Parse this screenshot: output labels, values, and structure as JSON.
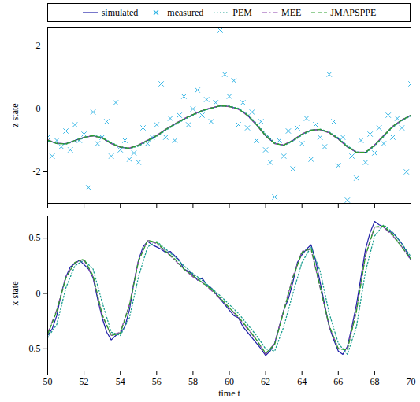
{
  "chart_data": [
    {
      "type": "line",
      "ylabel": "z state",
      "legend": "top",
      "tick_labels": "y",
      "xlim": [
        50,
        70
      ],
      "xticks": [
        50,
        52,
        54,
        56,
        58,
        60,
        62,
        64,
        66,
        68,
        70
      ],
      "ylim": [
        -3,
        2.6
      ],
      "yticks": [
        -2,
        0,
        2
      ],
      "x": [
        50,
        50.5,
        51,
        51.5,
        52,
        52.5,
        53,
        53.5,
        54,
        54.5,
        55,
        55.5,
        56,
        56.5,
        57,
        57.5,
        58,
        58.5,
        59,
        59.5,
        60,
        60.5,
        61,
        61.5,
        62,
        62.5,
        63,
        63.5,
        64,
        64.5,
        65,
        65.5,
        66,
        66.5,
        67,
        67.5,
        68,
        68.5,
        69,
        69.5,
        70
      ],
      "series": [
        {
          "name": "simulated",
          "color": "#1f1fa8",
          "line_style": "solid",
          "values": [
            -1.0,
            -1.1,
            -1.1,
            -1.0,
            -0.9,
            -0.85,
            -0.92,
            -1.1,
            -1.22,
            -1.25,
            -1.15,
            -1.0,
            -0.85,
            -0.65,
            -0.48,
            -0.32,
            -0.18,
            -0.05,
            0.03,
            0.1,
            0.08,
            0.0,
            -0.2,
            -0.5,
            -0.85,
            -1.1,
            -1.15,
            -1.0,
            -0.8,
            -0.67,
            -0.65,
            -0.75,
            -0.95,
            -1.2,
            -1.38,
            -1.38,
            -1.15,
            -0.85,
            -0.55,
            -0.35,
            -0.2
          ]
        },
        {
          "name": "measured",
          "color": "#33b5e5",
          "type": "scatter",
          "marker": "x",
          "x": [
            50,
            50.25,
            50.5,
            50.75,
            51,
            51.25,
            51.5,
            51.75,
            52,
            52.25,
            52.5,
            52.75,
            53,
            53.25,
            53.5,
            53.75,
            54,
            54.25,
            54.5,
            54.75,
            55,
            55.25,
            55.5,
            55.75,
            56,
            56.25,
            56.5,
            56.75,
            57,
            57.25,
            57.5,
            57.75,
            58,
            58.25,
            58.5,
            58.75,
            59,
            59.25,
            59.5,
            59.75,
            60,
            60.25,
            60.5,
            60.75,
            61,
            61.25,
            61.5,
            61.75,
            62,
            62.25,
            62.5,
            62.75,
            63,
            63.25,
            63.5,
            63.75,
            64,
            64.25,
            64.5,
            64.75,
            65,
            65.25,
            65.5,
            65.75,
            66,
            66.25,
            66.5,
            66.75,
            67,
            67.25,
            67.5,
            67.75,
            68,
            68.25,
            68.5,
            68.75,
            69,
            69.25,
            69.5,
            69.75,
            70
          ],
          "values": [
            -0.9,
            -1.5,
            -1.0,
            -1.2,
            -0.7,
            -1.3,
            -0.5,
            -1.0,
            -0.8,
            -2.5,
            -0.1,
            -1.1,
            -0.9,
            -0.4,
            -1.5,
            0.2,
            -1.3,
            -1.0,
            -1.6,
            -1.4,
            -1.7,
            -0.6,
            -1.1,
            -0.9,
            -0.5,
            0.8,
            -0.9,
            -0.3,
            -1.0,
            -0.2,
            0.4,
            -0.5,
            0.0,
            0.6,
            -0.2,
            0.3,
            -0.4,
            0.2,
            2.5,
            1.1,
            0.4,
            0.9,
            -0.5,
            0.2,
            -0.6,
            -0.1,
            -1.0,
            -0.4,
            -1.3,
            -1.7,
            -2.8,
            -1.0,
            -1.5,
            -0.7,
            -1.9,
            -0.6,
            -1.1,
            -0.3,
            -1.6,
            -0.5,
            -0.9,
            -1.2,
            1.1,
            -0.4,
            -1.8,
            -0.9,
            -2.9,
            -1.5,
            -2.2,
            -1.0,
            -1.7,
            -0.8,
            -1.4,
            -0.6,
            -1.1,
            -0.2,
            -0.9,
            -0.3,
            -0.6,
            -2.0,
            0.8
          ]
        },
        {
          "name": "PEM",
          "color": "#1a9e8f",
          "line_style": "dotted",
          "values": [
            -1.02,
            -1.08,
            -1.12,
            -1.03,
            -0.92,
            -0.84,
            -0.9,
            -1.07,
            -1.2,
            -1.26,
            -1.18,
            -1.03,
            -0.87,
            -0.68,
            -0.5,
            -0.34,
            -0.2,
            -0.07,
            0.02,
            0.09,
            0.09,
            0.02,
            -0.17,
            -0.46,
            -0.8,
            -1.07,
            -1.16,
            -1.03,
            -0.83,
            -0.69,
            -0.64,
            -0.73,
            -0.92,
            -1.17,
            -1.36,
            -1.4,
            -1.18,
            -0.88,
            -0.58,
            -0.37,
            -0.22
          ]
        },
        {
          "name": "MEE",
          "color": "#8e44ad",
          "line_style": "dashdot",
          "values": [
            -0.98,
            -1.09,
            -1.1,
            -1.01,
            -0.9,
            -0.86,
            -0.93,
            -1.1,
            -1.21,
            -1.24,
            -1.14,
            -0.99,
            -0.84,
            -0.64,
            -0.47,
            -0.31,
            -0.17,
            -0.05,
            0.04,
            0.1,
            0.07,
            -0.01,
            -0.21,
            -0.51,
            -0.86,
            -1.1,
            -1.14,
            -0.99,
            -0.79,
            -0.67,
            -0.66,
            -0.76,
            -0.96,
            -1.21,
            -1.37,
            -1.37,
            -1.14,
            -0.84,
            -0.55,
            -0.35,
            -0.2
          ]
        },
        {
          "name": "JMAPSPPE",
          "color": "#2ca02c",
          "line_style": "dashed",
          "values": [
            -0.99,
            -1.1,
            -1.11,
            -1.0,
            -0.9,
            -0.85,
            -0.92,
            -1.09,
            -1.21,
            -1.25,
            -1.15,
            -1.0,
            -0.85,
            -0.65,
            -0.48,
            -0.32,
            -0.18,
            -0.05,
            0.03,
            0.1,
            0.08,
            0.0,
            -0.2,
            -0.5,
            -0.85,
            -1.1,
            -1.15,
            -1.0,
            -0.8,
            -0.67,
            -0.65,
            -0.75,
            -0.95,
            -1.2,
            -1.38,
            -1.38,
            -1.15,
            -0.85,
            -0.55,
            -0.35,
            -0.2
          ]
        }
      ]
    },
    {
      "type": "line",
      "xlabel": "time t",
      "ylabel": "x state",
      "xlim": [
        50,
        70
      ],
      "xticks": [
        50,
        52,
        54,
        56,
        58,
        60,
        62,
        64,
        66,
        68,
        70
      ],
      "ylim": [
        -0.7,
        0.7
      ],
      "yticks": [
        -0.5,
        0,
        0.5
      ],
      "x": [
        50,
        50.5,
        51,
        51.5,
        52,
        52.5,
        53,
        53.5,
        54,
        54.5,
        55,
        55.5,
        56,
        56.5,
        57,
        57.5,
        58,
        58.5,
        59,
        59.5,
        60,
        60.5,
        61,
        61.5,
        62,
        62.5,
        63,
        63.5,
        64,
        64.5,
        65,
        65.5,
        66,
        66.5,
        67,
        67.5,
        68,
        68.5,
        69,
        69.5,
        70
      ],
      "series": [
        {
          "name": "simulated",
          "color": "#1f1fa8",
          "line_style": "solid",
          "x": [
            50,
            50.25,
            50.5,
            50.75,
            51,
            51.25,
            51.5,
            51.75,
            52,
            52.25,
            52.5,
            52.75,
            53,
            53.25,
            53.5,
            53.75,
            54,
            54.25,
            54.5,
            54.75,
            55,
            55.25,
            55.5,
            55.75,
            56,
            56.25,
            56.5,
            56.75,
            57,
            57.25,
            57.5,
            57.75,
            58,
            58.25,
            58.5,
            58.75,
            59,
            59.25,
            59.5,
            59.75,
            60,
            60.25,
            60.5,
            60.75,
            61,
            61.25,
            61.5,
            61.75,
            62,
            62.25,
            62.5,
            62.75,
            63,
            63.25,
            63.5,
            63.75,
            64,
            64.25,
            64.5,
            64.75,
            65,
            65.25,
            65.5,
            65.75,
            66,
            66.25,
            66.5,
            66.75,
            67,
            67.25,
            67.5,
            67.75,
            68,
            68.25,
            68.5,
            68.75,
            69,
            69.25,
            69.5,
            69.75,
            70
          ],
          "values": [
            -0.38,
            -0.32,
            -0.2,
            0.0,
            0.15,
            0.24,
            0.27,
            0.3,
            0.26,
            0.22,
            0.14,
            -0.05,
            -0.22,
            -0.35,
            -0.42,
            -0.38,
            -0.36,
            -0.3,
            -0.15,
            0.1,
            0.3,
            0.42,
            0.47,
            0.44,
            0.42,
            0.4,
            0.37,
            0.38,
            0.34,
            0.3,
            0.22,
            0.2,
            0.17,
            0.12,
            0.14,
            0.08,
            0.05,
            0.0,
            -0.05,
            -0.1,
            -0.15,
            -0.2,
            -0.22,
            -0.3,
            -0.35,
            -0.4,
            -0.45,
            -0.5,
            -0.56,
            -0.52,
            -0.45,
            -0.3,
            -0.15,
            -0.05,
            0.1,
            0.28,
            0.35,
            0.4,
            0.44,
            0.3,
            0.1,
            -0.1,
            -0.3,
            -0.42,
            -0.52,
            -0.55,
            -0.48,
            -0.3,
            -0.1,
            0.15,
            0.4,
            0.55,
            0.65,
            0.62,
            0.6,
            0.56,
            0.55,
            0.5,
            0.45,
            0.38,
            0.3
          ]
        },
        {
          "name": "PEM",
          "color": "#1a9e8f",
          "line_style": "dotted",
          "values": [
            -0.4,
            -0.28,
            0.05,
            0.25,
            0.3,
            0.22,
            -0.08,
            -0.35,
            -0.38,
            -0.22,
            0.15,
            0.42,
            0.47,
            0.4,
            0.33,
            0.25,
            0.18,
            0.12,
            0.05,
            -0.02,
            -0.1,
            -0.18,
            -0.28,
            -0.38,
            -0.5,
            -0.52,
            -0.3,
            0.0,
            0.28,
            0.42,
            0.2,
            -0.18,
            -0.45,
            -0.55,
            -0.3,
            0.2,
            0.52,
            0.62,
            0.55,
            0.45,
            0.33
          ]
        },
        {
          "name": "MEE",
          "color": "#8e44ad",
          "line_style": "dashdot",
          "values": [
            -0.36,
            -0.15,
            0.15,
            0.28,
            0.3,
            0.15,
            -0.2,
            -0.38,
            -0.35,
            -0.1,
            0.3,
            0.48,
            0.45,
            0.38,
            0.3,
            0.22,
            0.15,
            0.1,
            0.03,
            -0.05,
            -0.13,
            -0.22,
            -0.32,
            -0.42,
            -0.55,
            -0.45,
            -0.15,
            0.15,
            0.38,
            0.4,
            0.05,
            -0.3,
            -0.5,
            -0.5,
            -0.15,
            0.35,
            0.6,
            0.6,
            0.52,
            0.42,
            0.3
          ]
        },
        {
          "name": "JMAPSPPE",
          "color": "#2ca02c",
          "line_style": "dashed",
          "values": [
            -0.37,
            -0.16,
            0.14,
            0.28,
            0.31,
            0.16,
            -0.19,
            -0.38,
            -0.36,
            -0.11,
            0.29,
            0.48,
            0.46,
            0.38,
            0.31,
            0.22,
            0.16,
            0.1,
            0.04,
            -0.04,
            -0.13,
            -0.21,
            -0.31,
            -0.42,
            -0.54,
            -0.46,
            -0.16,
            0.14,
            0.37,
            0.41,
            0.06,
            -0.29,
            -0.5,
            -0.51,
            -0.16,
            0.34,
            0.6,
            0.61,
            0.53,
            0.42,
            0.31
          ]
        }
      ]
    }
  ]
}
